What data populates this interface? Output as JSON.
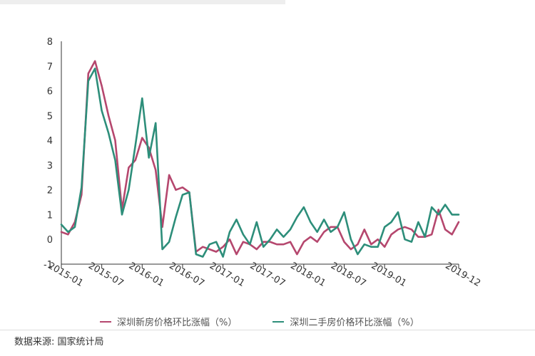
{
  "chart_data": {
    "type": "line",
    "yticks": [
      "-1",
      "0",
      "1",
      "2",
      "3",
      "4",
      "5",
      "6",
      "7",
      "8"
    ],
    "ylim": [
      -1,
      8
    ],
    "xticks": [
      "2015-01",
      "2015-07",
      "2016-01",
      "2016-07",
      "2017-01",
      "2017-07",
      "2018-01",
      "2018-07",
      "2019-01",
      "2019-12"
    ],
    "x": [
      "2015-01",
      "2015-02",
      "2015-03",
      "2015-04",
      "2015-05",
      "2015-06",
      "2015-07",
      "2015-08",
      "2015-09",
      "2015-10",
      "2015-11",
      "2015-12",
      "2016-01",
      "2016-02",
      "2016-03",
      "2016-04",
      "2016-05",
      "2016-06",
      "2016-07",
      "2016-08",
      "2016-09",
      "2016-10",
      "2016-11",
      "2016-12",
      "2017-01",
      "2017-02",
      "2017-03",
      "2017-04",
      "2017-05",
      "2017-06",
      "2017-07",
      "2017-08",
      "2017-09",
      "2017-10",
      "2017-11",
      "2017-12",
      "2018-01",
      "2018-02",
      "2018-03",
      "2018-04",
      "2018-05",
      "2018-06",
      "2018-07",
      "2018-08",
      "2018-09",
      "2018-10",
      "2018-11",
      "2018-12",
      "2019-01",
      "2019-02",
      "2019-03",
      "2019-04",
      "2019-05",
      "2019-06",
      "2019-07",
      "2019-08",
      "2019-09",
      "2019-10",
      "2019-11",
      "2019-12"
    ],
    "series": [
      {
        "name": "深圳新房价格环比涨幅（%）",
        "color": "#b5476e",
        "values": [
          0.3,
          0.2,
          0.7,
          1.8,
          6.7,
          7.2,
          6.2,
          5.0,
          4.0,
          1.2,
          2.9,
          3.2,
          4.1,
          3.7,
          2.8,
          0.5,
          2.6,
          2.0,
          2.1,
          1.9,
          -0.5,
          -0.3,
          -0.4,
          -0.5,
          -0.3,
          0.0,
          -0.6,
          -0.1,
          -0.2,
          -0.4,
          -0.1,
          -0.1,
          -0.2,
          -0.2,
          -0.1,
          -0.6,
          -0.1,
          0.1,
          -0.1,
          0.3,
          0.5,
          0.5,
          -0.1,
          -0.4,
          -0.2,
          0.4,
          -0.2,
          0.0,
          -0.3,
          0.2,
          0.4,
          0.5,
          0.4,
          0.1,
          0.1,
          0.2,
          1.2,
          0.4,
          0.2,
          0.7
        ]
      },
      {
        "name": "深圳二手房价格环比涨幅（%）",
        "color": "#2d8e7a",
        "values": [
          0.6,
          0.3,
          0.5,
          2.1,
          6.4,
          6.9,
          5.2,
          4.3,
          3.2,
          1.0,
          2.0,
          3.8,
          5.7,
          3.3,
          4.7,
          -0.4,
          -0.1,
          0.9,
          1.8,
          1.9,
          -0.6,
          -0.7,
          -0.2,
          -0.1,
          -0.7,
          0.3,
          0.8,
          0.2,
          -0.2,
          0.7,
          -0.3,
          0.0,
          0.4,
          0.1,
          0.4,
          0.9,
          1.3,
          0.7,
          0.3,
          0.8,
          0.3,
          0.5,
          1.1,
          0.0,
          -0.6,
          -0.2,
          -0.3,
          -0.3,
          0.5,
          0.7,
          1.1,
          0.0,
          -0.1,
          0.7,
          0.1,
          1.3,
          1.0,
          1.4,
          1.0,
          1.0
        ]
      }
    ]
  },
  "legend": {
    "new": "深圳新房价格环比涨幅（%）",
    "second": "深圳二手房价格环比涨幅（%）"
  },
  "source_text": "数据来源: 国家统计局"
}
